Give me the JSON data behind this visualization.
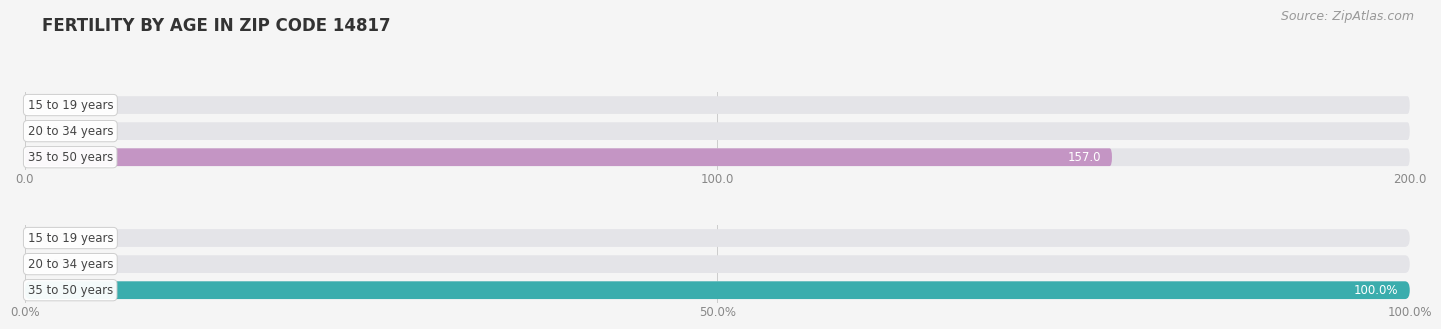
{
  "title": "FERTILITY BY AGE IN ZIP CODE 14817",
  "source": "Source: ZipAtlas.com",
  "top_chart": {
    "categories": [
      "15 to 19 years",
      "20 to 34 years",
      "35 to 50 years"
    ],
    "values": [
      0.0,
      0.0,
      157.0
    ],
    "xlim": [
      0,
      200
    ],
    "xticks": [
      0.0,
      100.0,
      200.0
    ],
    "xtick_labels": [
      "0.0",
      "100.0",
      "200.0"
    ],
    "bar_color": "#c495c4",
    "bar_bg_color": "#e4e4e8",
    "label_inside_color": "#ffffff",
    "label_outside_color": "#888888"
  },
  "bottom_chart": {
    "categories": [
      "15 to 19 years",
      "20 to 34 years",
      "35 to 50 years"
    ],
    "values": [
      0.0,
      0.0,
      100.0
    ],
    "xlim": [
      0,
      100
    ],
    "xticks": [
      0.0,
      50.0,
      100.0
    ],
    "xtick_labels": [
      "0.0%",
      "50.0%",
      "100.0%"
    ],
    "bar_color": "#3aadad",
    "bar_bg_color": "#e4e4e8",
    "label_inside_color": "#ffffff",
    "label_outside_color": "#888888"
  },
  "label_color": "#444444",
  "label_bg_color": "#ffffff",
  "label_border_color": "#cccccc",
  "fig_bg_color": "#f5f5f5",
  "title_color": "#333333",
  "title_fontsize": 12,
  "source_fontsize": 9,
  "category_fontsize": 8.5,
  "value_fontsize": 8.5,
  "tick_fontsize": 8.5
}
